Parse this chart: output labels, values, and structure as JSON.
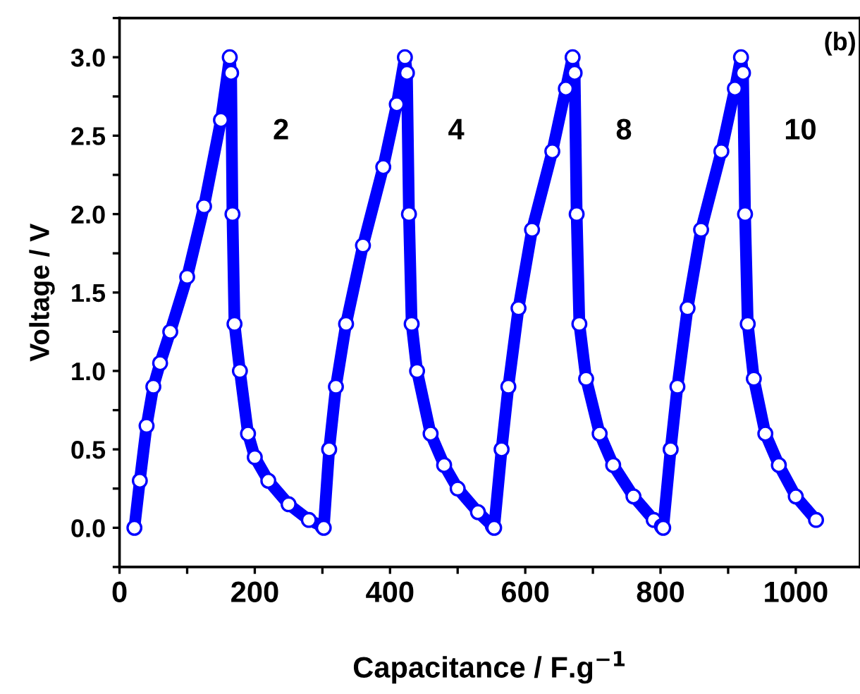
{
  "chart_data": {
    "type": "line",
    "xlabel": "Capacitance / F.g$^{−1}$",
    "ylabel": "Voltage / V",
    "xlim": [
      0,
      1095
    ],
    "ylim": [
      -0.25,
      3.25
    ],
    "xticks": [
      0,
      {
        "value": 100,
        "label": null
      },
      200,
      {
        "value": 300,
        "label": null
      },
      400,
      {
        "value": 500,
        "label": null
      },
      600,
      {
        "value": 700,
        "label": null
      },
      800,
      {
        "value": 900,
        "label": null
      },
      1000
    ],
    "yticks": [
      {
        "value": -0.25,
        "label": null
      },
      "0.0",
      {
        "value": 0.25,
        "label": null
      },
      0.5,
      {
        "value": 0.75,
        "label": null
      },
      "1.0",
      {
        "value": 1.25,
        "label": null
      },
      1.5,
      {
        "value": 1.75,
        "label": null
      },
      "2.0",
      {
        "value": 2.25,
        "label": null
      },
      2.5,
      {
        "value": 2.75,
        "label": null
      },
      "3.0",
      {
        "value": 3.25,
        "label": null
      }
    ],
    "marker": "circle",
    "line_style": "solid",
    "grid": false,
    "legend": false,
    "series": [
      {
        "color": "#0000ff",
        "x": [
          22,
          30,
          40,
          50,
          60,
          75,
          100,
          125,
          150,
          163,
          165,
          167,
          170,
          178,
          190,
          200,
          220,
          250,
          280,
          300,
          302,
          310,
          320,
          335,
          360,
          390,
          410,
          422,
          425,
          428,
          432,
          440,
          460,
          480,
          500,
          530,
          552,
          554,
          565,
          575,
          590,
          610,
          640,
          660,
          670,
          673,
          676,
          680,
          690,
          710,
          730,
          760,
          790,
          802,
          804,
          815,
          825,
          840,
          860,
          890,
          910,
          919,
          922,
          925,
          929,
          938,
          955,
          975,
          1000,
          1030
        ],
        "values": [
          0,
          0.3,
          0.65,
          0.9,
          1.05,
          1.25,
          1.6,
          2.05,
          2.6,
          3.0,
          2.9,
          2.0,
          1.3,
          1.0,
          0.6,
          0.45,
          0.3,
          0.15,
          0.05,
          0.01,
          0.0,
          0.5,
          0.9,
          1.3,
          1.8,
          2.3,
          2.7,
          3.0,
          2.9,
          2.0,
          1.3,
          1.0,
          0.6,
          0.4,
          0.25,
          0.1,
          0.01,
          0.0,
          0.5,
          0.9,
          1.4,
          1.9,
          2.4,
          2.8,
          3.0,
          2.9,
          2.0,
          1.3,
          0.95,
          0.6,
          0.4,
          0.2,
          0.05,
          0.01,
          0.0,
          0.5,
          0.9,
          1.4,
          1.9,
          2.4,
          2.8,
          3.0,
          2.9,
          2.0,
          1.3,
          0.95,
          0.6,
          0.4,
          0.2,
          0.05
        ]
      }
    ],
    "annotations": [
      "2",
      "4",
      "8",
      "10",
      "(b)"
    ]
  }
}
